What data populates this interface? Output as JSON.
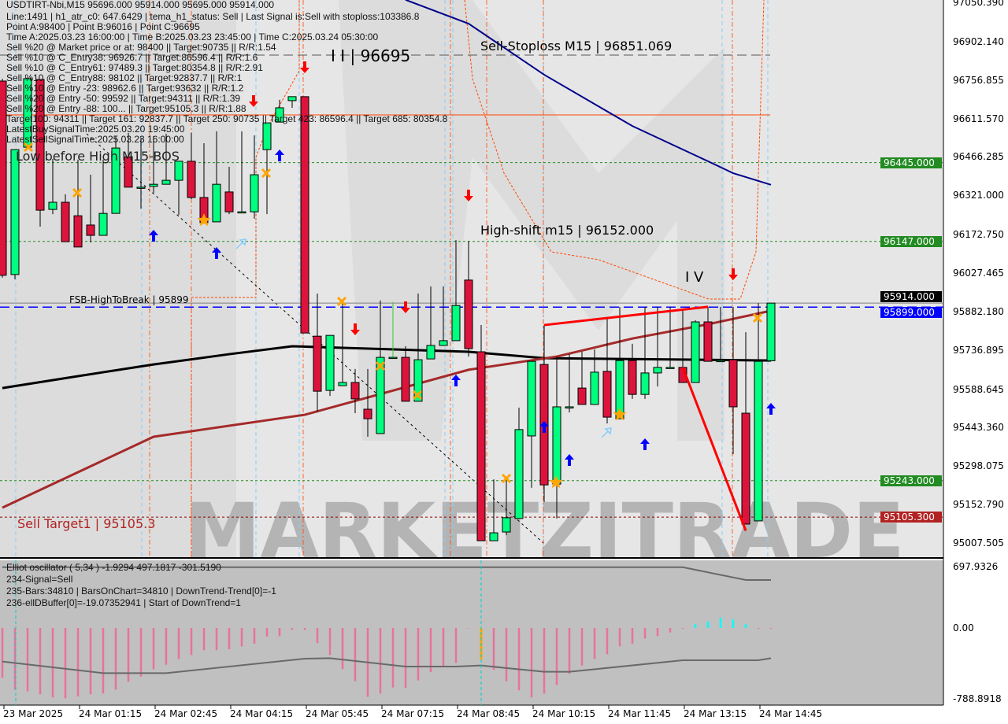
{
  "header": {
    "symbol_line": "USDTIRT-Nbi,M15  95696.000 95914.000 95695.000 95914.000",
    "lines": [
      "Line:1491 | h1_atr_c0: 647.6429 | tema_h1_status: Sell | Last Signal is:Sell with stoploss:103386.8",
      "Point A:98400 | Point B:96016 | Point C:96695",
      "Time A:2025.03.23 16:00:00 | Time B:2025.03.23 23:45:00 | Time C:2025.03.24 05:30:00",
      "Sell %20 @ Market price or at: 98400 || Target:90735 || R/R:1.54",
      "Sell %10 @ C_Entry38: 96926.7 || Target:86596.4 || R/R:1.6",
      "Sell %10 @ C_Entry61: 97489.3 || Target:80354.8 || R/R:2.91",
      "Sell %10 @ C_Entry88: 98102 || Target:92837.7 || R/R:1",
      "Sell %10 @ Entry -23: 98962.6 || Target:93632 || R/R:1.2",
      "Sell %20 @ Entry -50: 99592 || Target:94311 || R/R:1.39",
      "Sell %20 @ Entry -88: 100... || Target:95105.3 || R/R:1.88",
      "Target100: 94311 || Target 161: 92837.7 || Target 250: 90735 || Target 423: 86596.4 || Target 685: 80354.8",
      "LatestBuySignalTime:2025.03.20 19:45:00",
      "LatestSellSignalTime:2025.03.23 16:00:00"
    ]
  },
  "annotations": {
    "low_before_high": "Low before High  M15-BOS",
    "wave_ii": "I I | 96695",
    "wave_iv": "I V",
    "sell_stoploss": "Sell-Stoploss M15 | 96851.069",
    "high_shift": "High-shift m15 | 96152.000",
    "fsb": "FSB-HighToBreak | 95899",
    "sell_target1": "Sell Target1 | 95105.3",
    "watermark": "MARKETZITRADE"
  },
  "oscillator": {
    "lines": [
      "Elliot oscillator ( 5,34 ) -1.9294 497.1817 -301.5190",
      "234-Signal=Sell",
      "235-Bars:34810 | BarsOnChart=34810 | DownTrend-Trend[0]=-1",
      "236-ellDBuffer[0]=-19.07352941 | Start of DownTrend=1"
    ],
    "axis_labels": [
      "697.9326",
      "0.00",
      "-788.8918"
    ]
  },
  "price_axis": {
    "labels": [
      "97050.390",
      "96902.140",
      "96756.855",
      "96611.570",
      "96466.285",
      "96321.000",
      "96172.750",
      "96027.465",
      "95882.180",
      "95736.895",
      "95588.645",
      "95443.360",
      "95298.075",
      "95152.790",
      "95007.505"
    ],
    "tags": [
      {
        "text": "96445.000",
        "price": 96445,
        "color": "#228b22"
      },
      {
        "text": "96147.000",
        "price": 96147,
        "color": "#228b22"
      },
      {
        "text": "95914.000",
        "price": 95914,
        "color": "#000000"
      },
      {
        "text": "95899.000",
        "price": 95899,
        "color": "#0000ff"
      },
      {
        "text": "95243.000",
        "price": 95243,
        "color": "#228b22"
      },
      {
        "text": "95105.300",
        "price": 95105.3,
        "color": "#b22222"
      }
    ]
  },
  "time_axis": [
    "23 Mar 2025",
    "24 Mar 01:15",
    "24 Mar 02:45",
    "24 Mar 04:15",
    "24 Mar 05:45",
    "24 Mar 07:15",
    "24 Mar 08:45",
    "24 Mar 10:15",
    "24 Mar 11:45",
    "24 Mar 13:15",
    "24 Mar 14:45"
  ],
  "colors": {
    "bull": "#00ff7f",
    "bear": "#dc143c",
    "ma_fast": "#000000",
    "ma_slow": "#a52a2a",
    "ma_long": "#00008b",
    "hist": "#e8739a",
    "hist_up": "#00ffff",
    "hist_mark": "#ffa500"
  },
  "chart_data": [
    {
      "type": "candlestick",
      "title": "USDTIRT-Nbi,M15",
      "ylim": [
        95007.505,
        97050.39
      ],
      "ohlc": [
        [
          96753,
          96762,
          96010,
          96019
        ],
        [
          96022,
          96494,
          96004,
          96494
        ],
        [
          96503,
          96762,
          96503,
          96762
        ],
        [
          96759,
          96759,
          96203,
          96265
        ],
        [
          96268,
          96459,
          96250,
          96295
        ],
        [
          96295,
          96325,
          96146,
          96146
        ],
        [
          96244,
          96456,
          96126,
          96126
        ],
        [
          96209,
          96399,
          96143,
          96170
        ],
        [
          96170,
          96456,
          96170,
          96253
        ],
        [
          96253,
          96545,
          96253,
          96500
        ],
        [
          96467,
          96557,
          96352,
          96352
        ],
        [
          96352,
          96539,
          96271,
          96352
        ],
        [
          96355,
          96545,
          96331,
          96363
        ],
        [
          96363,
          96554,
          96363,
          96378
        ],
        [
          96378,
          96450,
          96247,
          96450
        ],
        [
          96450,
          96557,
          96307,
          96313
        ],
        [
          96313,
          96518,
          96218,
          96218
        ],
        [
          96221,
          96563,
          96221,
          96363
        ],
        [
          96334,
          96429,
          96250,
          96259
        ],
        [
          96259,
          96563,
          96259,
          96259
        ],
        [
          96259,
          96548,
          96233,
          96399
        ],
        [
          96494,
          96595,
          96250,
          96595
        ],
        [
          96598,
          96682,
          96598,
          96652
        ],
        [
          96679,
          96694,
          96652,
          96694
        ],
        [
          96694,
          96695,
          95801,
          95801
        ],
        [
          95789,
          95950,
          95504,
          95581
        ],
        [
          95584,
          95792,
          95563,
          95792
        ],
        [
          95602,
          95921,
          95602,
          95614
        ],
        [
          95614,
          95665,
          95498,
          95552
        ],
        [
          95513,
          95665,
          95409,
          95477
        ],
        [
          95421,
          95924,
          95421,
          95709
        ],
        [
          95709,
          95918,
          95709,
          95709
        ],
        [
          95709,
          95751,
          95543,
          95543
        ],
        [
          95543,
          95950,
          95543,
          95700
        ],
        [
          95703,
          95977,
          95703,
          95754
        ],
        [
          95754,
          95977,
          95754,
          95772
        ],
        [
          95772,
          96152,
          95772,
          95905
        ],
        [
          96001,
          96149,
          95712,
          95742
        ],
        [
          95730,
          95831,
          95016,
          95016
        ],
        [
          95016,
          95248,
          95016,
          95046
        ],
        [
          95049,
          95251,
          95037,
          95103
        ],
        [
          95100,
          95519,
          95100,
          95436
        ],
        [
          95412,
          95694,
          95216,
          95694
        ],
        [
          95682,
          95831,
          95162,
          95227
        ],
        [
          95230,
          95712,
          95100,
          95522
        ],
        [
          95522,
          95721,
          95501,
          95522
        ],
        [
          95593,
          95730,
          95531,
          95531
        ],
        [
          95531,
          95739,
          95531,
          95653
        ],
        [
          95656,
          95861,
          95459,
          95483
        ],
        [
          95477,
          95900,
          95477,
          95697
        ],
        [
          95697,
          95760,
          95552,
          95569
        ],
        [
          95569,
          95900,
          95552,
          95650
        ],
        [
          95650,
          95900,
          95599,
          95671
        ],
        [
          95671,
          95900,
          95671,
          95671
        ],
        [
          95671,
          95885,
          95614,
          95614
        ],
        [
          95614,
          95849,
          95614,
          95843
        ],
        [
          95843,
          95900,
          95694,
          95694
        ],
        [
          95694,
          95900,
          95694,
          95697
        ],
        [
          95700,
          95900,
          95343,
          95522
        ],
        [
          95498,
          95804,
          95079,
          95079
        ],
        [
          95091,
          95914,
          95091,
          95694
        ],
        [
          95696,
          95914,
          95695,
          95914
        ]
      ],
      "moving_averages": [
        {
          "color": "#000000",
          "points": [
            [
              0,
              95593
            ],
            [
              6,
              95638
            ],
            [
              12,
              95682
            ],
            [
              18,
              95721
            ],
            [
              23,
              95751
            ],
            [
              25,
              95748
            ],
            [
              37,
              95730
            ],
            [
              43,
              95706
            ],
            [
              61,
              95697
            ]
          ]
        },
        {
          "color": "#a52a2a",
          "points": [
            [
              0,
              95141
            ],
            [
              12,
              95409
            ],
            [
              24,
              95492
            ],
            [
              37,
              95662
            ],
            [
              44,
              95712
            ],
            [
              50,
              95780
            ],
            [
              56,
              95834
            ],
            [
              61,
              95885
            ]
          ]
        },
        {
          "color": "#00008b",
          "points": [
            [
              32,
              97060
            ],
            [
              37,
              96970
            ],
            [
              43,
              96777
            ],
            [
              50,
              96583
            ],
            [
              56,
              96450
            ],
            [
              58,
              96405
            ],
            [
              61,
              96361
            ]
          ]
        }
      ],
      "levels": [
        {
          "price": 96851.069,
          "color": "#555555",
          "style": "dashed"
        },
        {
          "price": 96625,
          "color": "#ff4500",
          "style": "solid"
        },
        {
          "price": 96445,
          "color": "#228b22",
          "style": "dotted"
        },
        {
          "price": 96147,
          "color": "#228b22",
          "style": "dotted"
        },
        {
          "price": 95914,
          "color": "#808080",
          "style": "solid"
        },
        {
          "price": 95899,
          "color": "#0000ff",
          "style": "dashed"
        },
        {
          "price": 95243,
          "color": "#228b22",
          "style": "dotted"
        },
        {
          "price": 95105.3,
          "color": "#8b0000",
          "style": "dotted"
        }
      ],
      "trendlines": [
        {
          "from": [
            43,
            95831
          ],
          "to": [
            56,
            95900
          ],
          "color": "#ff0000"
        },
        {
          "from": [
            54,
            95671
          ],
          "to": [
            59,
            95054
          ],
          "color": "#ff0000"
        }
      ]
    },
    {
      "type": "bar",
      "title": "Elliot oscillator ( 5,34 )",
      "ylim": [
        -788.8918,
        697.9326
      ],
      "values": [
        -555,
        -687,
        -707,
        -739,
        -774,
        -783,
        -760,
        -739,
        -731,
        -687,
        -599,
        -541,
        -459,
        -409,
        -345,
        -301,
        -248,
        -248,
        -237,
        -205,
        -175,
        -96,
        -91,
        -20,
        -20,
        -169,
        -301,
        -459,
        -593,
        -766,
        -731,
        -663,
        -666,
        -584,
        -491,
        -424,
        -389,
        -5,
        -351,
        -465,
        -593,
        -695,
        -774,
        -731,
        -634,
        -511,
        -418,
        -345,
        -292,
        -205,
        -175,
        -117,
        -91,
        -50,
        -9,
        44,
        73,
        117,
        96,
        44,
        -9,
        -9
      ],
      "highlight_index": 38,
      "signal_line": [
        [
          0,
          -374
        ],
        [
          8,
          -503
        ],
        [
          13,
          -503
        ],
        [
          24,
          -342
        ],
        [
          26,
          -336
        ],
        [
          32,
          -430
        ],
        [
          36,
          -430
        ],
        [
          38,
          -418
        ],
        [
          43,
          -488
        ],
        [
          45,
          -488
        ],
        [
          54,
          -359
        ],
        [
          60,
          -359
        ],
        [
          61,
          -336
        ]
      ],
      "upper_line": [
        [
          0,
          691
        ],
        [
          54,
          691
        ],
        [
          59,
          546
        ],
        [
          61,
          546
        ]
      ]
    }
  ]
}
